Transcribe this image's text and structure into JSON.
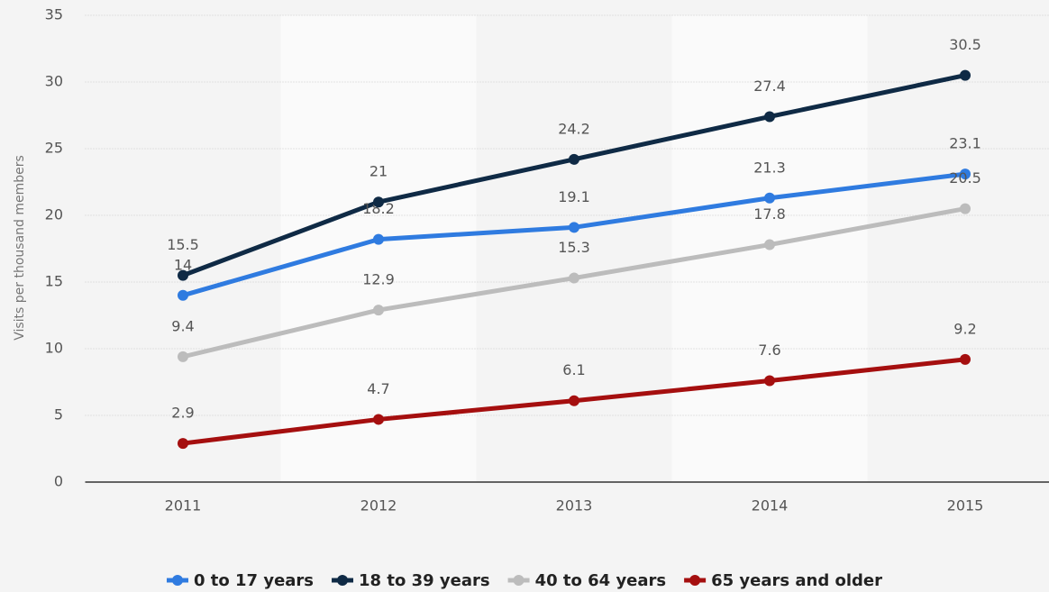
{
  "chart_data": {
    "type": "line",
    "y_axis_label": "Visits per thousand members",
    "categories": [
      "2011",
      "2012",
      "2013",
      "2014",
      "2015"
    ],
    "series": [
      {
        "name": "0 to 17 years",
        "color": "#2f7be0",
        "values": [
          14,
          18.2,
          19.1,
          21.3,
          23.1
        ]
      },
      {
        "name": "18 to 39 years",
        "color": "#0f2a45",
        "values": [
          15.5,
          21,
          24.2,
          27.4,
          30.5
        ]
      },
      {
        "name": "40 to 64 years",
        "color": "#bcbcbc",
        "values": [
          9.4,
          12.9,
          15.3,
          17.8,
          20.5
        ]
      },
      {
        "name": "65 years and older",
        "color": "#a50f0f",
        "values": [
          2.9,
          4.7,
          6.1,
          7.6,
          9.2
        ]
      }
    ],
    "ylim": [
      0,
      35
    ],
    "yticks": [
      0,
      5,
      10,
      15,
      20,
      25,
      30,
      35
    ],
    "grid": true,
    "legend": "bottom"
  }
}
